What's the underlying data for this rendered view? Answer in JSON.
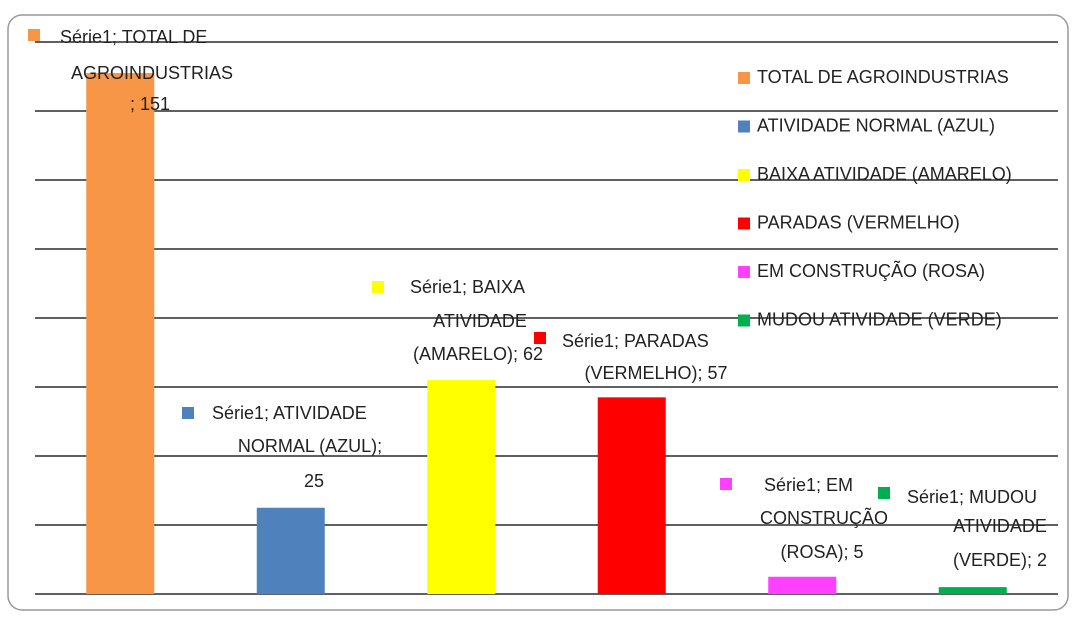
{
  "chart_data": {
    "type": "bar",
    "categories": [
      "TOTAL DE AGROINDUSTRIAS",
      "ATIVIDADE NORMAL (AZUL)",
      "BAIXA ATIVIDADE (AMARELO)",
      "PARADAS (VERMELHO)",
      "EM CONSTRUÇÃO (ROSA)",
      "MUDOU ATIVIDADE (VERDE)"
    ],
    "values": [
      151,
      25,
      62,
      57,
      5,
      2
    ],
    "value_labels": [
      [
        "Série1; TOTAL DE",
        "AGROINDUSTRIAS",
        "; 151"
      ],
      [
        "Série1; ATIVIDADE",
        "NORMAL (AZUL);",
        "25"
      ],
      [
        "Série1; BAIXA",
        "ATIVIDADE",
        "(AMARELO); 62"
      ],
      [
        "Série1; PARADAS",
        "(VERMELHO); 57"
      ],
      [
        "Série1; EM",
        "CONSTRUÇÃO",
        "(ROSA); 5"
      ],
      [
        "Série1; MUDOU",
        "ATIVIDADE",
        "(VERDE); 2"
      ]
    ],
    "colors": [
      "#f79646",
      "#4f81bd",
      "#ffff00",
      "#ff0000",
      "#ff40ff",
      "#00b050"
    ],
    "ylim": [
      0,
      160
    ],
    "yticks": [
      0,
      20,
      40,
      60,
      80,
      100,
      120,
      140,
      160
    ],
    "grid": true,
    "legend": "right"
  }
}
